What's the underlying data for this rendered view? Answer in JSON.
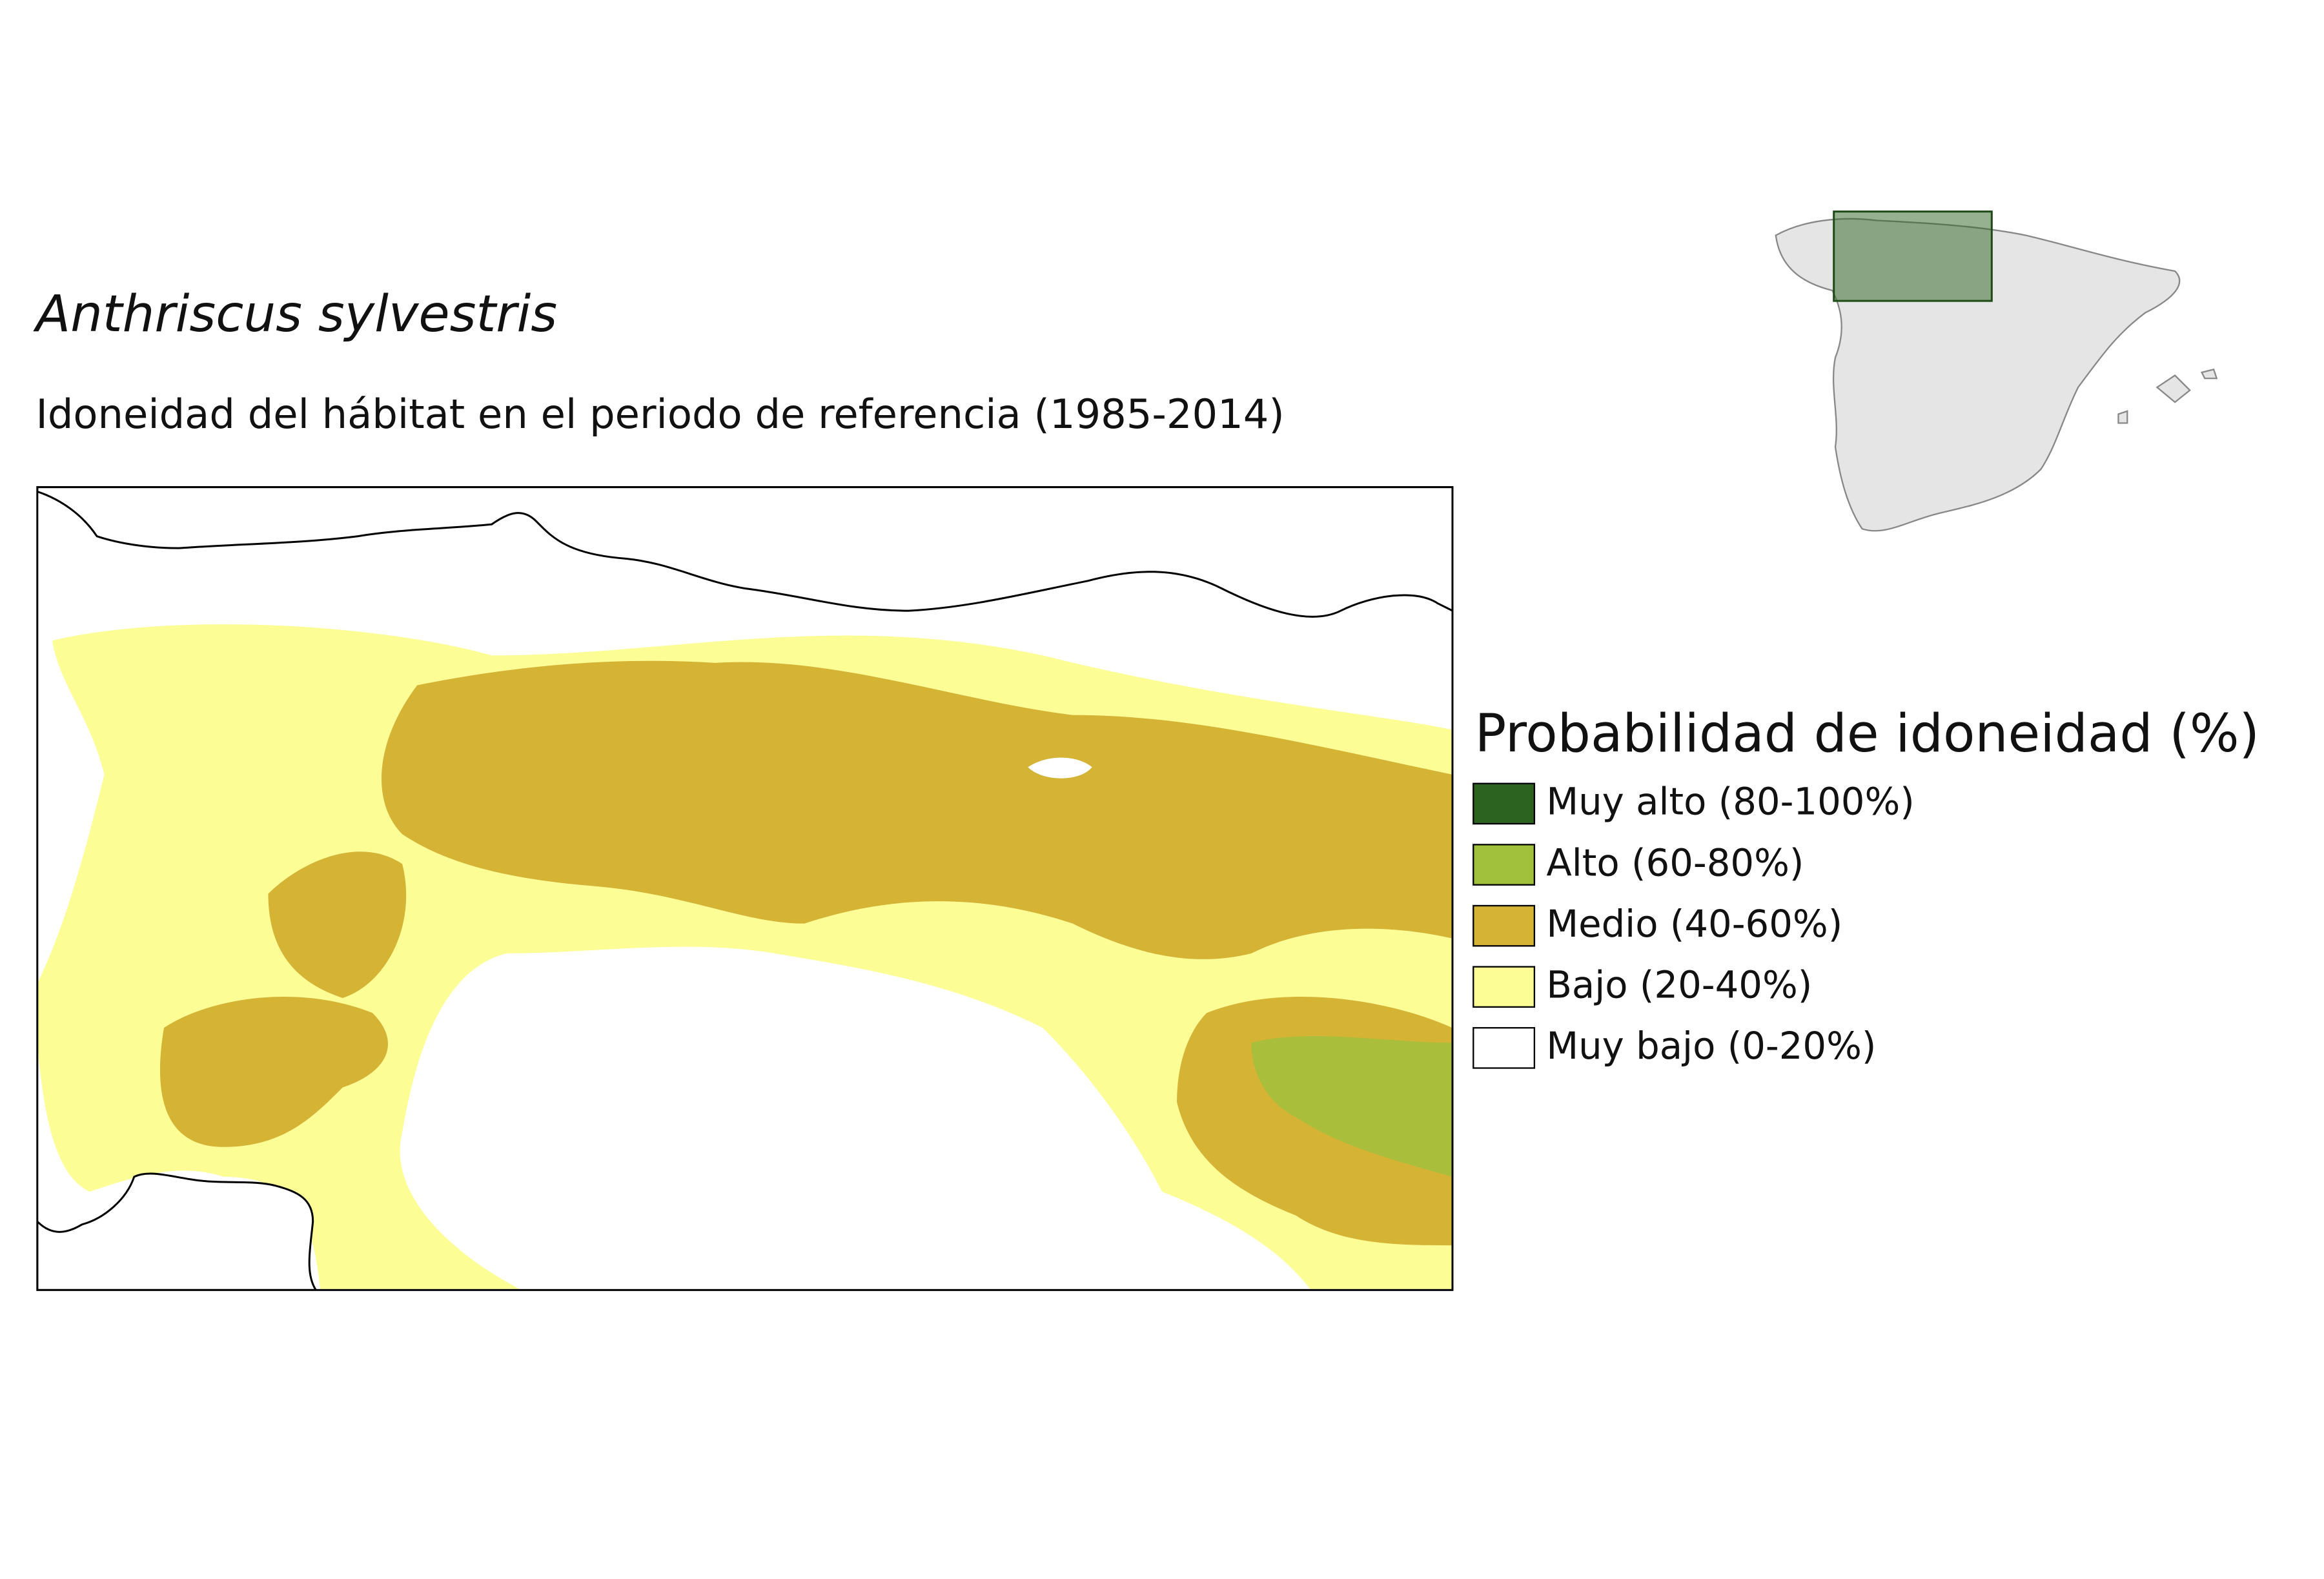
{
  "title": "Anthriscus sylvestris",
  "subtitle": "Idoneidad del hábitat en el periodo de referencia (1985-2014)",
  "legend": {
    "title": "Probabilidad de idoneidad (%)",
    "items": [
      {
        "label": "Muy alto (80-100%)",
        "color": "#2d6320"
      },
      {
        "label": "Alto (60-80%)",
        "color": "#a1c13c"
      },
      {
        "label": "Medio (40-60%)",
        "color": "#d4b335"
      },
      {
        "label": "Bajo (20-40%)",
        "color": "#fdfd96"
      },
      {
        "label": "Muy bajo (0-20%)",
        "color": "#ffffff"
      }
    ]
  }
}
